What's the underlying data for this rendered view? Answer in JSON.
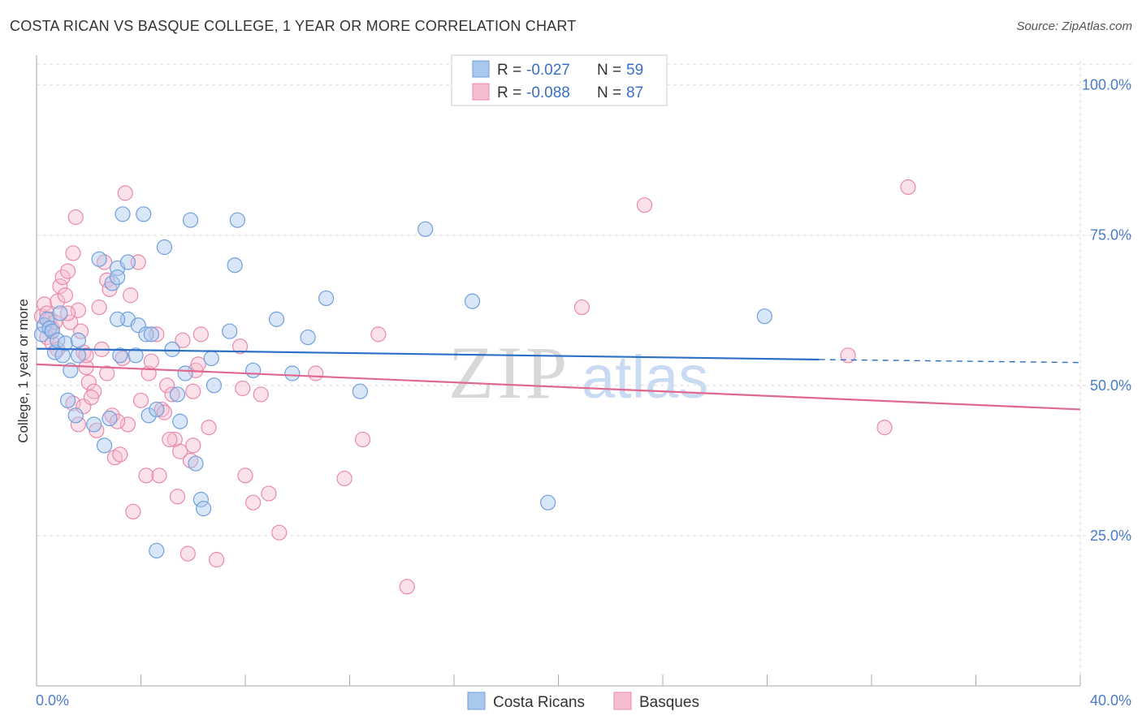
{
  "header": {
    "title": "COSTA RICAN VS BASQUE COLLEGE, 1 YEAR OR MORE CORRELATION CHART",
    "source": "Source: ZipAtlas.com"
  },
  "watermark": {
    "zip": "ZIP",
    "atlas": "atlas"
  },
  "colors": {
    "blue_fill": "#aac8ee",
    "blue_stroke": "#6f9fdc",
    "blue_line": "#2b6fc9",
    "pink_fill": "#f6bcd0",
    "pink_stroke": "#e88aab",
    "pink_line": "#e06890",
    "grid": "#dddddd",
    "tick_text": "#4a7cc9"
  },
  "legend": {
    "rows": [
      {
        "r_label": "R = ",
        "r_value": "-0.027",
        "n_label": "N = ",
        "n_value": "59"
      },
      {
        "r_label": "R = ",
        "r_value": "-0.088",
        "n_label": "N = ",
        "n_value": "87"
      }
    ]
  },
  "bottom_legend": [
    "Costa Ricans",
    "Basques"
  ],
  "chart_data": {
    "type": "scatter",
    "title": "COSTA RICAN VS BASQUE COLLEGE, 1 YEAR OR MORE CORRELATION CHART",
    "xlabel": "",
    "ylabel": "College, 1 year or more",
    "xlim": [
      0,
      40
    ],
    "ylim": [
      0,
      104
    ],
    "x_tick_labels": [
      "0.0%",
      "40.0%"
    ],
    "y_ticks": [
      25,
      50,
      75,
      100
    ],
    "y_tick_labels": [
      "25.0%",
      "50.0%",
      "75.0%",
      "100.0%"
    ],
    "grid": true,
    "series": [
      {
        "name": "Costa Ricans",
        "R": -0.027,
        "N": 59,
        "trend": {
          "x_start": 0,
          "y_start": 56.1,
          "x_solid_end": 30.0,
          "y_solid_end": 54.3,
          "x_end": 40,
          "y_end": 53.8
        },
        "points": [
          [
            0.2,
            58.5
          ],
          [
            0.3,
            60.0
          ],
          [
            0.4,
            61.0
          ],
          [
            0.5,
            59.5
          ],
          [
            0.6,
            59.0
          ],
          [
            0.7,
            55.5
          ],
          [
            0.8,
            57.5
          ],
          [
            1.0,
            55.0
          ],
          [
            1.1,
            57.0
          ],
          [
            1.2,
            47.5
          ],
          [
            1.6,
            57.5
          ],
          [
            1.6,
            55.0
          ],
          [
            1.3,
            52.5
          ],
          [
            1.5,
            45.0
          ],
          [
            2.2,
            43.5
          ],
          [
            2.6,
            40.0
          ],
          [
            2.8,
            44.5
          ],
          [
            3.1,
            69.5
          ],
          [
            2.9,
            67.0
          ],
          [
            3.1,
            68.0
          ],
          [
            3.3,
            78.5
          ],
          [
            3.5,
            70.5
          ],
          [
            3.5,
            61.0
          ],
          [
            3.1,
            61.0
          ],
          [
            3.9,
            60.0
          ],
          [
            4.2,
            58.5
          ],
          [
            3.8,
            55.0
          ],
          [
            4.3,
            45.0
          ],
          [
            4.4,
            58.5
          ],
          [
            4.6,
            46.0
          ],
          [
            4.9,
            73.0
          ],
          [
            5.2,
            56.0
          ],
          [
            5.4,
            48.5
          ],
          [
            5.5,
            44.0
          ],
          [
            5.7,
            52.0
          ],
          [
            5.9,
            77.5
          ],
          [
            6.1,
            37.0
          ],
          [
            6.3,
            31.0
          ],
          [
            6.4,
            29.5
          ],
          [
            6.7,
            54.5
          ],
          [
            6.8,
            50.0
          ],
          [
            7.4,
            59.0
          ],
          [
            7.6,
            70.0
          ],
          [
            7.7,
            77.5
          ],
          [
            8.3,
            52.5
          ],
          [
            9.2,
            61.0
          ],
          [
            9.8,
            52.0
          ],
          [
            10.4,
            58.0
          ],
          [
            11.1,
            64.5
          ],
          [
            12.4,
            49.0
          ],
          [
            14.9,
            76.0
          ],
          [
            16.7,
            64.0
          ],
          [
            19.6,
            30.5
          ],
          [
            27.9,
            61.5
          ],
          [
            2.4,
            71.0
          ],
          [
            4.1,
            78.5
          ],
          [
            4.6,
            22.5
          ],
          [
            3.2,
            55.0
          ],
          [
            0.9,
            62.0
          ]
        ]
      },
      {
        "name": "Basques",
        "R": -0.088,
        "N": 87,
        "trend": {
          "x_start": 0,
          "y_start": 53.5,
          "x_end": 40,
          "y_end": 46.0
        },
        "points": [
          [
            0.2,
            61.5
          ],
          [
            0.3,
            63.5
          ],
          [
            0.4,
            62.0
          ],
          [
            0.5,
            61.0
          ],
          [
            0.6,
            59.5
          ],
          [
            0.7,
            60.5
          ],
          [
            0.8,
            64.0
          ],
          [
            0.9,
            66.5
          ],
          [
            1.0,
            68.0
          ],
          [
            1.1,
            65.0
          ],
          [
            1.2,
            69.0
          ],
          [
            1.4,
            72.0
          ],
          [
            1.5,
            78.0
          ],
          [
            1.6,
            62.5
          ],
          [
            1.3,
            60.5
          ],
          [
            1.7,
            59.0
          ],
          [
            1.8,
            55.5
          ],
          [
            1.9,
            53.0
          ],
          [
            1.4,
            47.0
          ],
          [
            1.6,
            43.5
          ],
          [
            1.8,
            46.5
          ],
          [
            2.0,
            50.5
          ],
          [
            2.2,
            49.0
          ],
          [
            2.3,
            42.5
          ],
          [
            2.4,
            63.0
          ],
          [
            2.6,
            70.5
          ],
          [
            2.7,
            67.5
          ],
          [
            2.8,
            66.0
          ],
          [
            2.9,
            45.0
          ],
          [
            3.0,
            38.0
          ],
          [
            3.2,
            38.5
          ],
          [
            3.3,
            54.5
          ],
          [
            3.4,
            82.0
          ],
          [
            3.5,
            43.5
          ],
          [
            3.6,
            65.0
          ],
          [
            3.7,
            29.0
          ],
          [
            3.9,
            70.5
          ],
          [
            4.0,
            47.5
          ],
          [
            4.2,
            35.0
          ],
          [
            4.3,
            52.0
          ],
          [
            4.6,
            58.5
          ],
          [
            4.8,
            46.0
          ],
          [
            4.9,
            45.5
          ],
          [
            5.0,
            50.0
          ],
          [
            5.2,
            48.5
          ],
          [
            5.3,
            41.0
          ],
          [
            5.4,
            31.5
          ],
          [
            5.5,
            39.0
          ],
          [
            5.6,
            57.5
          ],
          [
            5.8,
            22.0
          ],
          [
            6.0,
            49.0
          ],
          [
            6.1,
            52.5
          ],
          [
            6.2,
            53.5
          ],
          [
            6.3,
            58.5
          ],
          [
            6.6,
            43.0
          ],
          [
            6.9,
            21.0
          ],
          [
            7.8,
            56.5
          ],
          [
            7.9,
            49.5
          ],
          [
            8.0,
            35.0
          ],
          [
            8.3,
            30.5
          ],
          [
            8.6,
            48.5
          ],
          [
            8.9,
            32.0
          ],
          [
            9.3,
            25.5
          ],
          [
            10.7,
            52.0
          ],
          [
            11.8,
            34.5
          ],
          [
            12.5,
            41.0
          ],
          [
            13.1,
            58.5
          ],
          [
            14.2,
            16.5
          ],
          [
            20.9,
            63.0
          ],
          [
            23.3,
            80.0
          ],
          [
            31.1,
            55.0
          ],
          [
            32.5,
            43.0
          ],
          [
            33.4,
            83.0
          ],
          [
            0.4,
            58.0
          ],
          [
            0.6,
            57.0
          ],
          [
            2.5,
            56.0
          ],
          [
            4.4,
            54.0
          ],
          [
            5.1,
            41.0
          ],
          [
            6.0,
            40.0
          ],
          [
            3.1,
            44.0
          ],
          [
            1.9,
            55.0
          ],
          [
            2.1,
            48.0
          ],
          [
            0.8,
            56.0
          ],
          [
            4.7,
            35.0
          ],
          [
            5.9,
            37.5
          ],
          [
            1.2,
            62.0
          ],
          [
            2.7,
            52.0
          ]
        ]
      }
    ]
  }
}
